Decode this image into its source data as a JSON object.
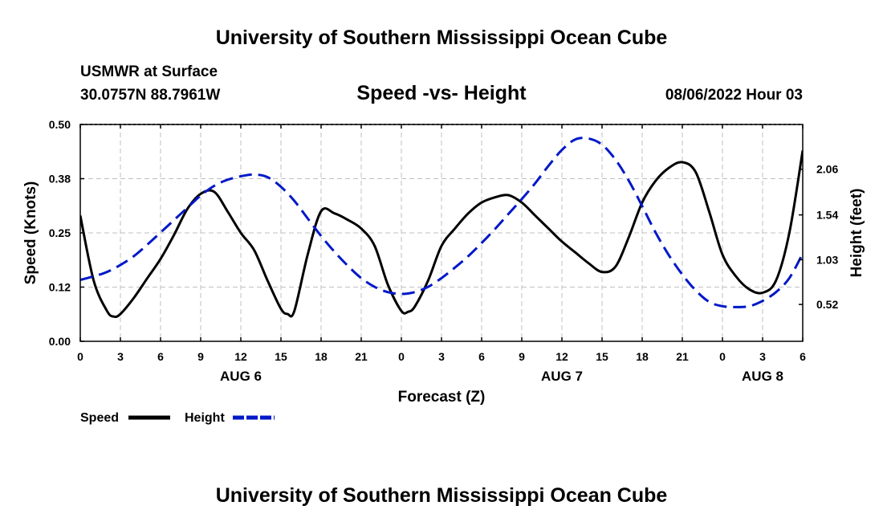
{
  "header": {
    "title": "University of Southern Mississippi Ocean Cube",
    "station": "USMWR at Surface",
    "coords": "30.0757N  88.7961W",
    "subtitle": "Speed -vs- Height",
    "datetime": "08/06/2022 Hour 03"
  },
  "footer": {
    "title": "University of Southern Mississippi Ocean Cube"
  },
  "chart_data": {
    "type": "line",
    "title": "Speed -vs- Height",
    "xlabel": "Forecast (Z)",
    "ylabel_left": "Speed (Knots)",
    "ylabel_right": "Height (feet)",
    "x_hours_range": [
      0,
      54
    ],
    "x_ticks": [
      {
        "hour": 0,
        "label": "0"
      },
      {
        "hour": 3,
        "label": "3"
      },
      {
        "hour": 6,
        "label": "6"
      },
      {
        "hour": 9,
        "label": "9"
      },
      {
        "hour": 12,
        "label": "12"
      },
      {
        "hour": 15,
        "label": "15"
      },
      {
        "hour": 18,
        "label": "18"
      },
      {
        "hour": 21,
        "label": "21"
      },
      {
        "hour": 24,
        "label": "0"
      },
      {
        "hour": 27,
        "label": "3"
      },
      {
        "hour": 30,
        "label": "6"
      },
      {
        "hour": 33,
        "label": "9"
      },
      {
        "hour": 36,
        "label": "12"
      },
      {
        "hour": 39,
        "label": "15"
      },
      {
        "hour": 42,
        "label": "18"
      },
      {
        "hour": 45,
        "label": "21"
      },
      {
        "hour": 48,
        "label": "0"
      },
      {
        "hour": 51,
        "label": "3"
      },
      {
        "hour": 54,
        "label": "6"
      }
    ],
    "day_labels": [
      {
        "hour": 12,
        "label": "AUG 6"
      },
      {
        "hour": 36,
        "label": "AUG 7"
      },
      {
        "hour": 51,
        "label": "AUG 8"
      }
    ],
    "y_left": {
      "range": [
        0,
        0.5
      ],
      "ticks": [
        {
          "value": 0,
          "label": "0.00"
        },
        {
          "value": 0.125,
          "label": "0.12"
        },
        {
          "value": 0.25,
          "label": "0.25"
        },
        {
          "value": 0.375,
          "label": "0.38"
        },
        {
          "value": 0.5,
          "label": "0.50"
        }
      ]
    },
    "y_right": {
      "range": [
        0.1,
        2.57
      ],
      "ticks": [
        {
          "value": 0.52,
          "label": "0.52"
        },
        {
          "value": 1.03,
          "label": "1.03"
        },
        {
          "value": 1.54,
          "label": "1.54"
        },
        {
          "value": 2.06,
          "label": "2.06"
        }
      ]
    },
    "legend": {
      "position": "bottom-left",
      "speed_label": "Speed",
      "height_label": "Height"
    },
    "series": [
      {
        "name": "Speed",
        "axis": "left",
        "color": "#000000",
        "style": "solid",
        "points": [
          [
            0,
            0.29
          ],
          [
            1,
            0.14
          ],
          [
            2,
            0.07
          ],
          [
            2.5,
            0.057
          ],
          [
            3,
            0.063
          ],
          [
            4,
            0.1
          ],
          [
            5,
            0.145
          ],
          [
            6,
            0.19
          ],
          [
            7,
            0.245
          ],
          [
            8,
            0.305
          ],
          [
            9,
            0.34
          ],
          [
            10,
            0.345
          ],
          [
            11,
            0.3
          ],
          [
            12,
            0.25
          ],
          [
            13,
            0.21
          ],
          [
            14,
            0.14
          ],
          [
            15,
            0.075
          ],
          [
            15.5,
            0.063
          ],
          [
            16,
            0.07
          ],
          [
            17,
            0.2
          ],
          [
            18,
            0.3
          ],
          [
            19,
            0.295
          ],
          [
            20,
            0.28
          ],
          [
            21,
            0.26
          ],
          [
            22,
            0.22
          ],
          [
            23,
            0.13
          ],
          [
            24,
            0.07
          ],
          [
            24.5,
            0.068
          ],
          [
            25,
            0.08
          ],
          [
            26,
            0.14
          ],
          [
            27,
            0.22
          ],
          [
            28,
            0.26
          ],
          [
            29,
            0.295
          ],
          [
            30,
            0.32
          ],
          [
            31,
            0.332
          ],
          [
            32,
            0.337
          ],
          [
            33,
            0.32
          ],
          [
            34,
            0.29
          ],
          [
            35,
            0.26
          ],
          [
            36,
            0.23
          ],
          [
            37,
            0.205
          ],
          [
            38,
            0.18
          ],
          [
            39,
            0.16
          ],
          [
            40,
            0.172
          ],
          [
            41,
            0.24
          ],
          [
            42,
            0.32
          ],
          [
            43,
            0.37
          ],
          [
            44,
            0.4
          ],
          [
            45,
            0.413
          ],
          [
            46,
            0.39
          ],
          [
            47,
            0.3
          ],
          [
            48,
            0.2
          ],
          [
            49,
            0.15
          ],
          [
            50,
            0.12
          ],
          [
            51,
            0.112
          ],
          [
            52,
            0.14
          ],
          [
            53,
            0.25
          ],
          [
            54,
            0.44
          ]
        ]
      },
      {
        "name": "Height",
        "axis": "right",
        "color": "#0018c8",
        "style": "dashed",
        "points": [
          [
            0,
            0.8
          ],
          [
            1,
            0.84
          ],
          [
            2,
            0.89
          ],
          [
            3,
            0.97
          ],
          [
            4,
            1.07
          ],
          [
            5,
            1.2
          ],
          [
            6,
            1.34
          ],
          [
            7,
            1.48
          ],
          [
            8,
            1.62
          ],
          [
            9,
            1.76
          ],
          [
            10,
            1.87
          ],
          [
            11,
            1.94
          ],
          [
            12,
            1.98
          ],
          [
            13,
            2.0
          ],
          [
            14,
            1.97
          ],
          [
            15,
            1.86
          ],
          [
            16,
            1.7
          ],
          [
            17,
            1.5
          ],
          [
            18,
            1.3
          ],
          [
            19,
            1.12
          ],
          [
            20,
            0.96
          ],
          [
            21,
            0.82
          ],
          [
            22,
            0.72
          ],
          [
            23,
            0.66
          ],
          [
            24,
            0.64
          ],
          [
            25,
            0.66
          ],
          [
            26,
            0.72
          ],
          [
            27,
            0.82
          ],
          [
            28,
            0.94
          ],
          [
            29,
            1.07
          ],
          [
            30,
            1.22
          ],
          [
            31,
            1.38
          ],
          [
            32,
            1.55
          ],
          [
            33,
            1.72
          ],
          [
            34,
            1.9
          ],
          [
            35,
            2.1
          ],
          [
            36,
            2.28
          ],
          [
            37,
            2.4
          ],
          [
            38,
            2.41
          ],
          [
            39,
            2.34
          ],
          [
            40,
            2.17
          ],
          [
            41,
            1.93
          ],
          [
            42,
            1.64
          ],
          [
            43,
            1.34
          ],
          [
            44,
            1.08
          ],
          [
            45,
            0.86
          ],
          [
            46,
            0.68
          ],
          [
            47,
            0.55
          ],
          [
            48,
            0.5
          ],
          [
            49,
            0.49
          ],
          [
            50,
            0.5
          ],
          [
            51,
            0.56
          ],
          [
            52,
            0.66
          ],
          [
            53,
            0.82
          ],
          [
            54,
            1.1
          ]
        ]
      }
    ]
  }
}
